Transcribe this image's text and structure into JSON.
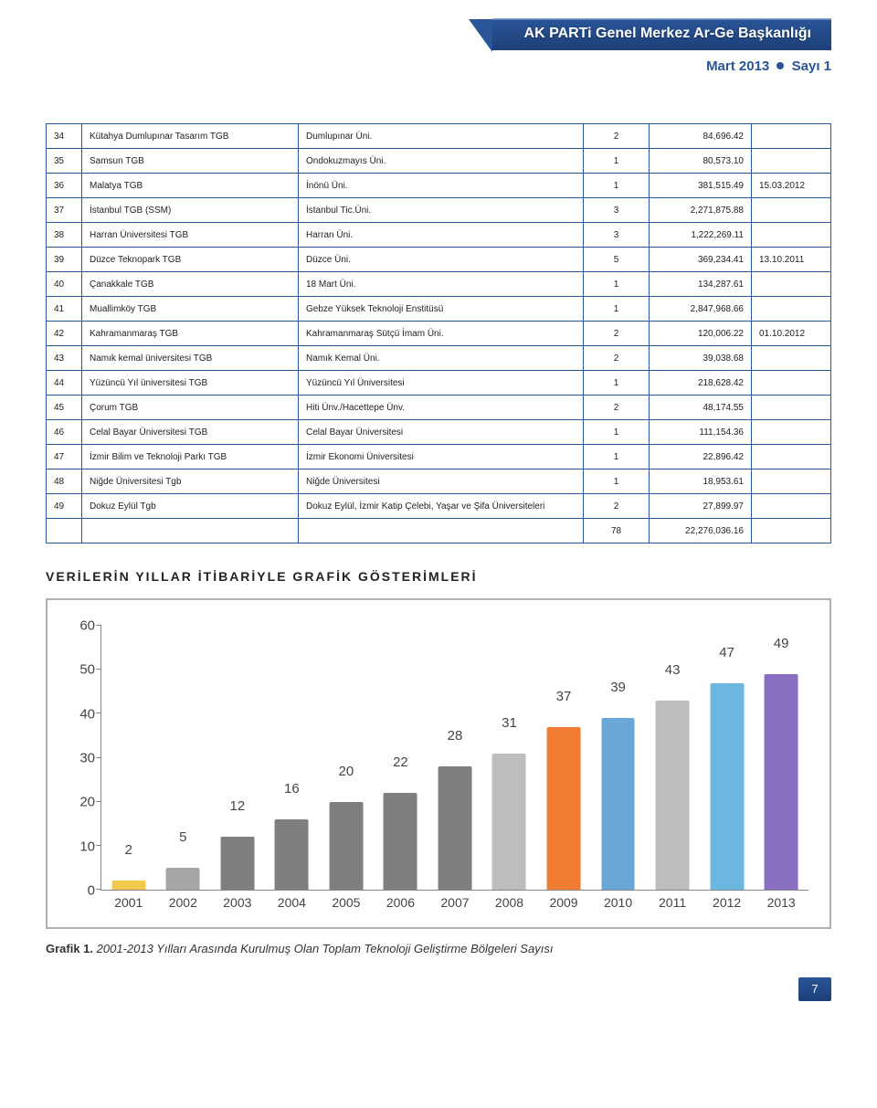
{
  "header": {
    "banner_text": "AK PARTi Genel Merkez Ar-Ge Başkanlığı",
    "sub_left": "Mart 2013",
    "sub_right": "Sayı 1",
    "banner_bg_from": "#2a5598",
    "banner_bg_to": "#1d3f78"
  },
  "table": {
    "rows": [
      {
        "n": "34",
        "name": "Kütahya Dumlupınar Tasarım TGB",
        "uni": "Dumlupınar Üni.",
        "cnt": "2",
        "area": "84,696.42",
        "date": ""
      },
      {
        "n": "35",
        "name": "Samsun TGB",
        "uni": "Ondokuzmayıs Üni.",
        "cnt": "1",
        "area": "80,573.10",
        "date": ""
      },
      {
        "n": "36",
        "name": "Malatya TGB",
        "uni": "İnönü Üni.",
        "cnt": "1",
        "area": "381,515.49",
        "date": "15.03.2012"
      },
      {
        "n": "37",
        "name": "İstanbul TGB (SSM)",
        "uni": "İstanbul Tic.Üni.",
        "cnt": "3",
        "area": "2,271,875.88",
        "date": ""
      },
      {
        "n": "38",
        "name": "Harran Üniversitesi TGB",
        "uni": "Harran Üni.",
        "cnt": "3",
        "area": "1,222,269.11",
        "date": ""
      },
      {
        "n": "39",
        "name": "Düzce Teknopark TGB",
        "uni": "Düzce Üni.",
        "cnt": "5",
        "area": "369,234.41",
        "date": "13.10.2011"
      },
      {
        "n": "40",
        "name": "Çanakkale TGB",
        "uni": "18 Mart  Üni.",
        "cnt": "1",
        "area": "134,287.61",
        "date": ""
      },
      {
        "n": "41",
        "name": "Muallimköy TGB",
        "uni": "Gebze Yüksek Teknoloji Enstitüsü",
        "cnt": "1",
        "area": "2,847,968.66",
        "date": ""
      },
      {
        "n": "42",
        "name": "Kahramanmaraş TGB",
        "uni": "Kahramanmaraş Sütçü İmam Üni.",
        "cnt": "2",
        "area": "120,006.22",
        "date": "01.10.2012"
      },
      {
        "n": "43",
        "name": "Namık kemal üniversitesi TGB",
        "uni": "Namık Kemal Üni.",
        "cnt": "2",
        "area": "39,038.68",
        "date": ""
      },
      {
        "n": "44",
        "name": "Yüzüncü Yıl üniversitesi TGB",
        "uni": "Yüzüncü Yıl Üniversitesi",
        "cnt": "1",
        "area": "218,628.42",
        "date": ""
      },
      {
        "n": "45",
        "name": "Çorum TGB",
        "uni": "Hiti Ünv./Hacettepe Ünv.",
        "cnt": "2",
        "area": "48,174.55",
        "date": ""
      },
      {
        "n": "46",
        "name": "Celal Bayar Üniversitesi TGB",
        "uni": "Celal Bayar Üniversitesi",
        "cnt": "1",
        "area": "111,154.36",
        "date": ""
      },
      {
        "n": "47",
        "name": "İzmir Bilim ve Teknoloji Parkı TGB",
        "uni": "İzmir Ekonomi Üniversitesi",
        "cnt": "1",
        "area": "22,896.42",
        "date": ""
      },
      {
        "n": "48",
        "name": "Niğde Üniversitesi Tgb",
        "uni": "Niğde Üniversitesi",
        "cnt": "1",
        "area": "18,953.61",
        "date": ""
      },
      {
        "n": "49",
        "name": "Dokuz Eylül Tgb",
        "uni": "Dokuz Eylül, İzmir Katip Çelebi, Yaşar ve Şifa Üniversiteleri",
        "cnt": "2",
        "area": "27,899.97",
        "date": ""
      }
    ],
    "total_cnt": "78",
    "total_area": "22,276,036.16"
  },
  "section_title": "VERİLERİN YILLAR İTİBARİYLE GRAFİK GÖSTERİMLERİ",
  "chart": {
    "type": "bar",
    "ymax": 60,
    "yticks": [
      0,
      10,
      20,
      30,
      40,
      50,
      60
    ],
    "categories": [
      "2001",
      "2002",
      "2003",
      "2004",
      "2005",
      "2006",
      "2007",
      "2008",
      "2009",
      "2010",
      "2011",
      "2012",
      "2013"
    ],
    "values": [
      2,
      5,
      12,
      16,
      20,
      22,
      28,
      31,
      37,
      39,
      43,
      47,
      49
    ],
    "bar_colors": [
      "#f2c94c",
      "#a6a6a6",
      "#7f7f7f",
      "#7f7f7f",
      "#7f7f7f",
      "#7f7f7f",
      "#7f7f7f",
      "#bdbdbd",
      "#ef7c30",
      "#6aa7d8",
      "#bdbdbd",
      "#6bb7e0",
      "#8a6fc0"
    ],
    "axis_color": "#888888",
    "label_fontsize": 15,
    "background_color": "#ffffff",
    "border_color": "#b0b0b0"
  },
  "caption": {
    "bold": "Grafik 1.",
    "rest": " 2001-2013 Yılları Arasında Kurulmuş Olan Toplam Teknoloji Geliştirme Bölgeleri Sayısı"
  },
  "page_number": "7"
}
